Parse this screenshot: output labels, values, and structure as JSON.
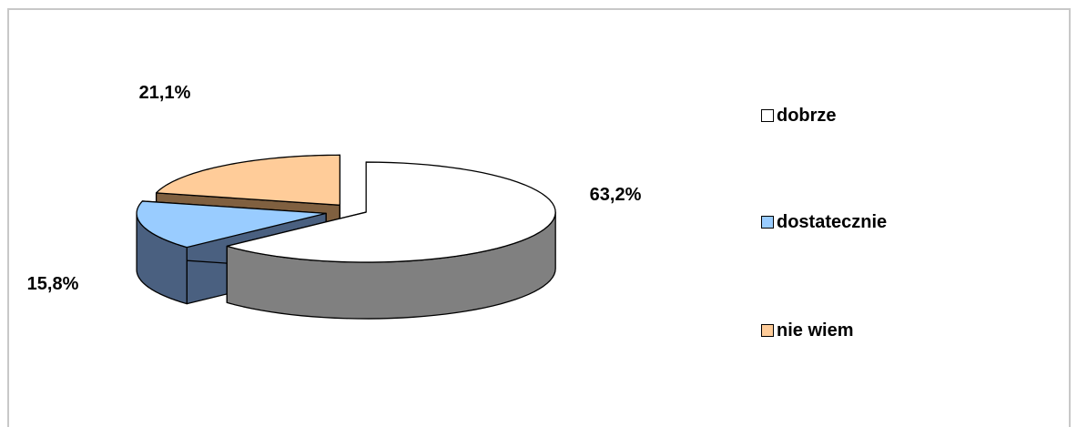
{
  "chart_data": {
    "type": "pie",
    "style": "3d-exploded",
    "categories": [
      "dobrze",
      "dostatecznie",
      "nie wiem"
    ],
    "values": [
      63.2,
      15.8,
      21.1
    ],
    "data_labels": [
      "63,2%",
      "15,8%",
      "21,1%"
    ],
    "colors": {
      "top": [
        "#ffffff",
        "#99ccff",
        "#ffcc99"
      ],
      "side": [
        "#808080",
        "#4a6080",
        "#806040"
      ]
    },
    "legend_position": "right"
  },
  "legend": [
    {
      "label": "dobrze",
      "color": "#ffffff"
    },
    {
      "label": "dostatecznie",
      "color": "#99ccff"
    },
    {
      "label": "nie wiem",
      "color": "#ffcc99"
    }
  ]
}
